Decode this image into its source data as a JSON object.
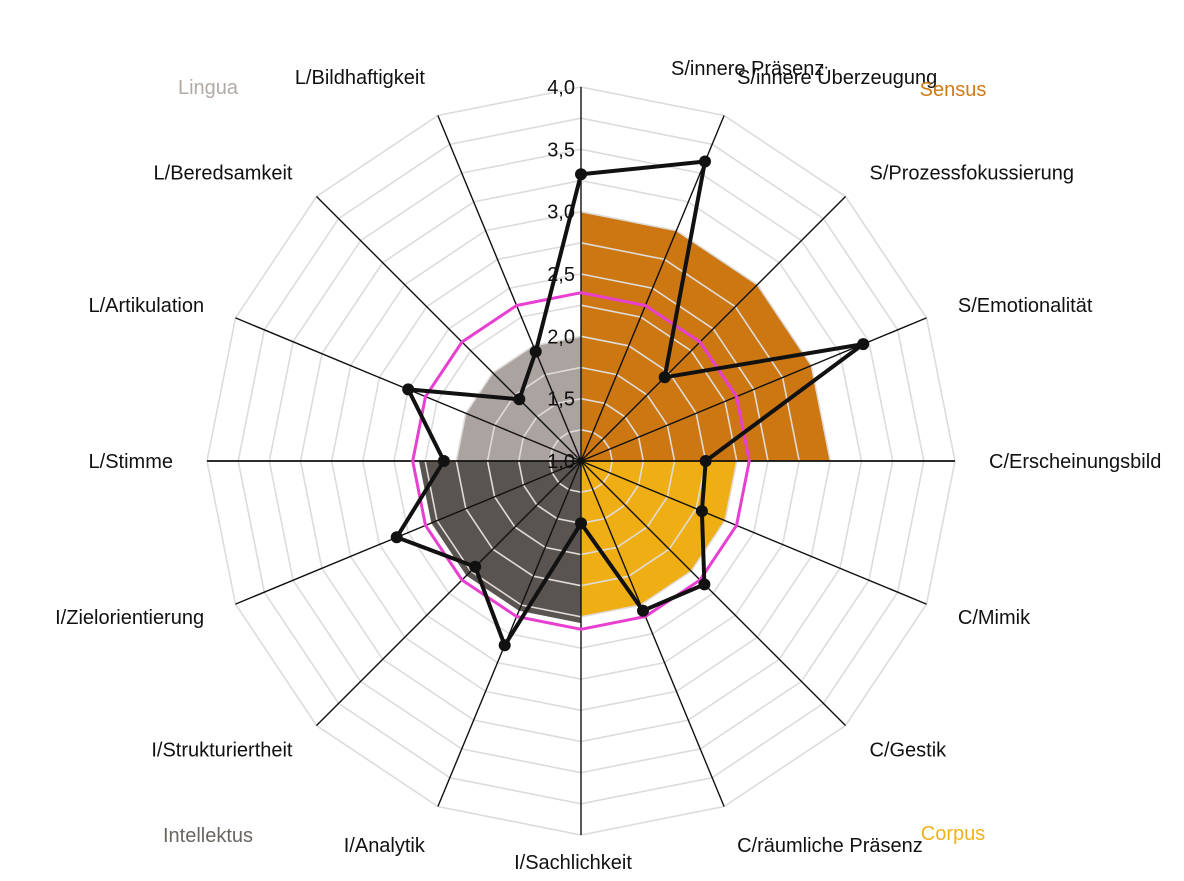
{
  "chart_data": {
    "type": "radar",
    "axes": [
      {
        "label": "S/innere Präsenz",
        "group": "Sensus"
      },
      {
        "label": "S/innere Überzeugung",
        "group": "Sensus"
      },
      {
        "label": "S/Prozessfokussierung",
        "group": "Sensus"
      },
      {
        "label": "S/Emotionalität",
        "group": "Sensus"
      },
      {
        "label": "C/Erscheinungsbild",
        "group": "Corpus"
      },
      {
        "label": "C/Mimik",
        "group": "Corpus"
      },
      {
        "label": "C/Gestik",
        "group": "Corpus"
      },
      {
        "label": "C/räumliche Präsenz",
        "group": "Corpus"
      },
      {
        "label": "I/Sachlichkeit",
        "group": "Intellektus"
      },
      {
        "label": "I/Analytik",
        "group": "Intellektus"
      },
      {
        "label": "I/Strukturiertheit",
        "group": "Intellektus"
      },
      {
        "label": "I/Zielorientierung",
        "group": "Intellektus"
      },
      {
        "label": "L/Stimme",
        "group": "Lingua"
      },
      {
        "label": "L/Artikulation",
        "group": "Lingua"
      },
      {
        "label": "L/Beredsamkeit",
        "group": "Lingua"
      },
      {
        "label": "L/Bildhaftigkeit",
        "group": "Lingua"
      }
    ],
    "rlim": [
      1.0,
      4.0
    ],
    "ticks": [
      "1,0",
      "1,5",
      "2,0",
      "2,5",
      "3,0",
      "3,5",
      "4,0"
    ],
    "tick_values": [
      1.0,
      1.5,
      2.0,
      2.5,
      3.0,
      3.5,
      4.0
    ],
    "grid": true,
    "groups": [
      {
        "name": "Lingua",
        "color": "#b3aaa6",
        "fill": "#aaa39f",
        "value": 2.0,
        "axes": [
          12,
          13,
          14,
          15
        ],
        "label_position": "top-left"
      },
      {
        "name": "Sensus",
        "color": "#cf7a14",
        "fill": "#cc7711",
        "value": 3.0,
        "axes": [
          0,
          1,
          2,
          3
        ],
        "label_position": "top-right"
      },
      {
        "name": "Intellektus",
        "color": "#6b6560",
        "fill": "#5a5450",
        "value": 2.3,
        "axes": [
          8,
          9,
          10,
          11
        ],
        "label_position": "bottom-left"
      },
      {
        "name": "Corpus",
        "color": "#f0b21a",
        "fill": "#efae14",
        "value": 2.25,
        "axes": [
          4,
          5,
          6,
          7
        ],
        "label_position": "bottom-right"
      }
    ],
    "series": [
      {
        "color": "#111111",
        "style": "line-markers",
        "values": [
          3.3,
          3.6,
          1.95,
          3.45,
          2.0,
          2.05,
          2.4,
          2.3,
          1.5,
          2.6,
          2.2,
          2.6,
          2.1,
          2.5,
          1.7,
          1.95
        ]
      },
      {
        "color": "#e83fd0",
        "style": "line",
        "values": [
          2.35,
          2.35,
          2.35,
          2.35,
          2.35,
          2.35,
          2.35,
          2.35,
          2.35,
          2.35,
          2.35,
          2.35,
          2.35,
          2.35,
          2.35,
          2.35
        ]
      }
    ]
  }
}
